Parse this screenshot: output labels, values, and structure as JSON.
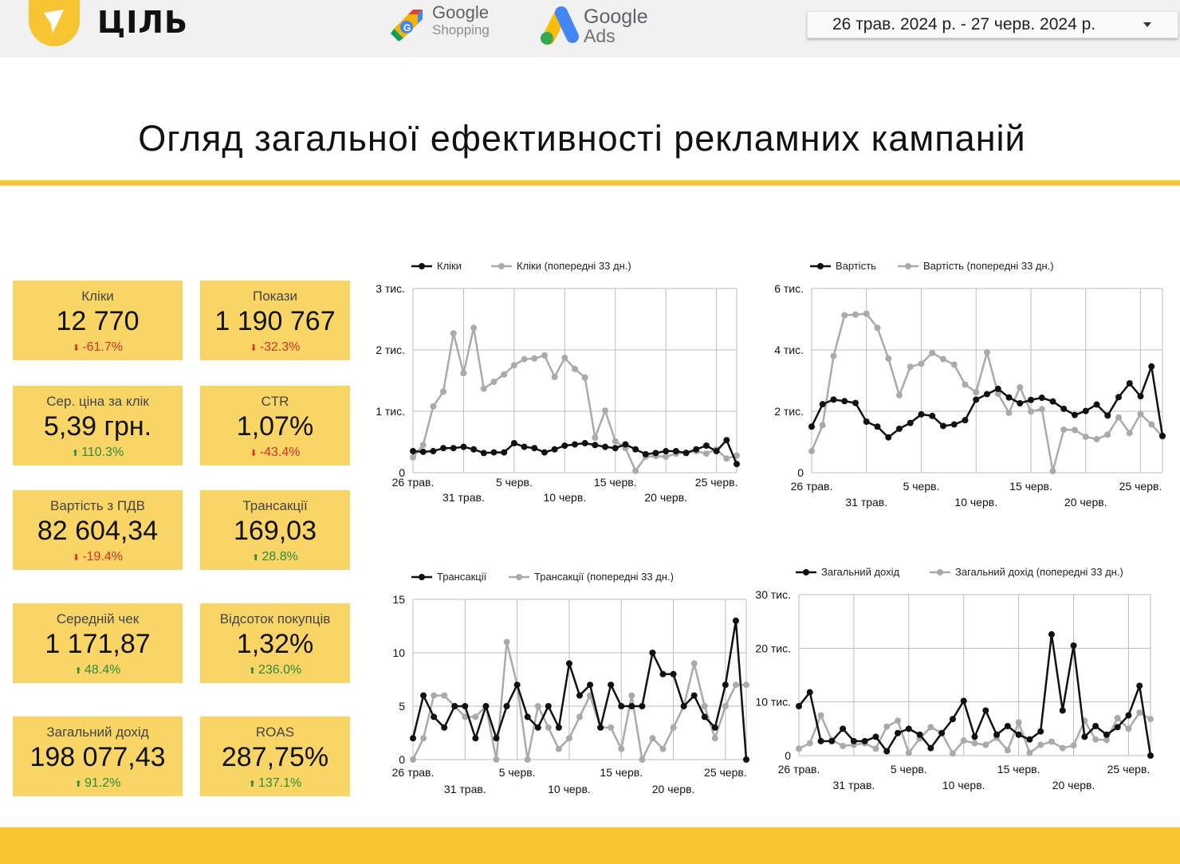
{
  "header": {
    "logo_text": "ЦІЛЬ",
    "brand_shopping_1": "Google",
    "brand_shopping_2": "Shopping",
    "brand_ads_1": "Google",
    "brand_ads_2": "Ads",
    "date_range": "26 трав. 2024 р. - 27 черв. 2024 р."
  },
  "title": "Огляд загальної ефективності рекламних кампаній",
  "colors": {
    "accent": "#f6c531",
    "kpi_bg": "#f9d566",
    "down": "#d93025",
    "up": "#2e8b3a",
    "current": "#111111",
    "previous": "#aaaaaa"
  },
  "kpis": [
    {
      "label": "Кліки",
      "value": "12 770",
      "change": "-61.7%",
      "dir": "down"
    },
    {
      "label": "Покази",
      "value": "1 190 767",
      "change": "-32.3%",
      "dir": "down"
    },
    {
      "label": "Сер. ціна за клік",
      "value": "5,39 грн.",
      "change": "110.3%",
      "dir": "up"
    },
    {
      "label": "CTR",
      "value": "1,07%",
      "change": "-43.4%",
      "dir": "down"
    },
    {
      "label": "Вартість з ПДВ",
      "value": "82 604,34",
      "change": "-19.4%",
      "dir": "down"
    },
    {
      "label": "Трансакції",
      "value": "169,03",
      "change": "28.8%",
      "dir": "up"
    },
    {
      "label": "Середній чек",
      "value": "1 171,87",
      "change": "48.4%",
      "dir": "up"
    },
    {
      "label": "Відсоток покупців",
      "value": "1,32%",
      "change": "236.0%",
      "dir": "up"
    },
    {
      "label": "Загальний дохід",
      "value": "198 077,43",
      "change": "91.2%",
      "dir": "up"
    },
    {
      "label": "ROAS",
      "value": "287,75%",
      "change": "137.1%",
      "dir": "up"
    }
  ],
  "chart_data": [
    {
      "type": "line",
      "legend": [
        "Кліки",
        "Кліки (попередні 33 дн.)"
      ],
      "yticks": [
        "0",
        "1 тис.",
        "2 тис.",
        "3 тис."
      ],
      "ylim": [
        0,
        3000
      ],
      "xticks_top": [
        "26 трав.",
        "5 черв.",
        "15 черв.",
        "25 черв."
      ],
      "xticks_bottom": [
        "31 трав.",
        "10 черв.",
        "20 черв."
      ],
      "series": [
        {
          "name": "Кліки",
          "values": [
            350,
            340,
            350,
            400,
            400,
            420,
            380,
            320,
            330,
            330,
            480,
            420,
            400,
            330,
            380,
            440,
            460,
            480,
            450,
            420,
            400,
            460,
            380,
            300,
            320,
            350,
            350,
            320,
            380,
            440,
            350,
            530,
            140
          ]
        },
        {
          "name": "Кліки (попередні 33 дн.)",
          "values": [
            250,
            450,
            1080,
            1320,
            2270,
            1620,
            2360,
            1370,
            1480,
            1600,
            1750,
            1850,
            1860,
            1910,
            1560,
            1870,
            1690,
            1550,
            570,
            1010,
            510,
            400,
            30,
            260,
            270,
            260,
            310,
            330,
            350,
            310,
            380,
            230,
            280
          ]
        }
      ]
    },
    {
      "type": "line",
      "legend": [
        "Вартість",
        "Вартість (попередні 33 дн.)"
      ],
      "yticks": [
        "0",
        "2 тис.",
        "4 тис.",
        "6 тис."
      ],
      "ylim": [
        0,
        6000
      ],
      "xticks_top": [
        "26 трав.",
        "5 черв.",
        "15 черв.",
        "25 черв."
      ],
      "xticks_bottom": [
        "31 трав.",
        "10 черв.",
        "20 черв."
      ],
      "series": [
        {
          "name": "Вартість",
          "values": [
            1500,
            2230,
            2380,
            2330,
            2270,
            1660,
            1500,
            1150,
            1430,
            1620,
            1900,
            1850,
            1520,
            1570,
            1710,
            2380,
            2560,
            2730,
            2450,
            2260,
            2370,
            2440,
            2320,
            2080,
            1880,
            2010,
            2220,
            1860,
            2460,
            2910,
            2490,
            3460,
            1200
          ]
        },
        {
          "name": "Вартість (попередні 33 дн.)",
          "values": [
            700,
            1550,
            3800,
            5130,
            5150,
            5180,
            4720,
            3720,
            2520,
            3450,
            3550,
            3900,
            3700,
            3520,
            2870,
            2620,
            3920,
            2570,
            1950,
            2780,
            1990,
            2070,
            50,
            1400,
            1390,
            1170,
            1090,
            1240,
            1800,
            1290,
            1910,
            1570,
            1170
          ]
        }
      ]
    },
    {
      "type": "line",
      "legend": [
        "Трансакції",
        "Трансакції (попередні 33 дн.)"
      ],
      "yticks": [
        "0",
        "5",
        "10",
        "15"
      ],
      "ylim": [
        0,
        15
      ],
      "xticks_top": [
        "26 трав.",
        "5 черв.",
        "15 черв.",
        "25 черв."
      ],
      "xticks_bottom": [
        "31 трав.",
        "10 черв.",
        "20 черв."
      ],
      "series": [
        {
          "name": "Трансакції",
          "values": [
            2,
            6,
            4,
            3,
            5,
            5,
            2,
            5,
            2,
            5,
            7,
            4,
            3,
            5,
            3,
            9,
            6,
            7,
            3,
            7,
            5,
            5,
            5,
            10,
            8,
            8,
            5,
            6,
            4,
            3,
            7,
            13,
            0
          ]
        },
        {
          "name": "Трансакції (попередні 33 дн.)",
          "values": [
            0,
            2,
            6,
            6,
            5,
            4,
            4,
            5,
            0,
            11,
            7,
            0,
            5,
            3,
            1,
            2,
            4,
            6,
            3,
            3,
            1,
            6,
            0,
            2,
            1,
            3,
            5,
            9,
            5,
            2,
            5,
            7,
            7
          ]
        }
      ]
    },
    {
      "type": "line",
      "legend": [
        "Загальний дохід",
        "Загальний дохід (попередні 33 дн.)"
      ],
      "yticks": [
        "0",
        "10 тис.",
        "20 тис.",
        "30 тис."
      ],
      "ylim": [
        0,
        30000
      ],
      "xticks_top": [
        "26 трав.",
        "5 черв.",
        "15 черв.",
        "25 черв."
      ],
      "xticks_bottom": [
        "31 трав.",
        "10 черв.",
        "20 черв."
      ],
      "series": [
        {
          "name": "Загальний дохід",
          "values": [
            9200,
            11800,
            2700,
            2700,
            5000,
            2700,
            2700,
            3500,
            800,
            4200,
            5000,
            3900,
            1400,
            4200,
            6800,
            10200,
            3500,
            8400,
            3900,
            5500,
            3900,
            3000,
            4500,
            22600,
            8400,
            20500,
            3500,
            5500,
            3900,
            5300,
            7500,
            13000,
            0
          ]
        },
        {
          "name": "Загальний дохід (попередні 33 дн.)",
          "values": [
            1300,
            2300,
            7500,
            2900,
            1800,
            2000,
            2300,
            1300,
            5400,
            6500,
            500,
            3200,
            5300,
            4200,
            400,
            2800,
            2300,
            2000,
            3300,
            1000,
            6200,
            500,
            2000,
            2600,
            1400,
            1900,
            6500,
            3000,
            2900,
            7000,
            5000,
            8000,
            6800
          ]
        }
      ]
    }
  ]
}
